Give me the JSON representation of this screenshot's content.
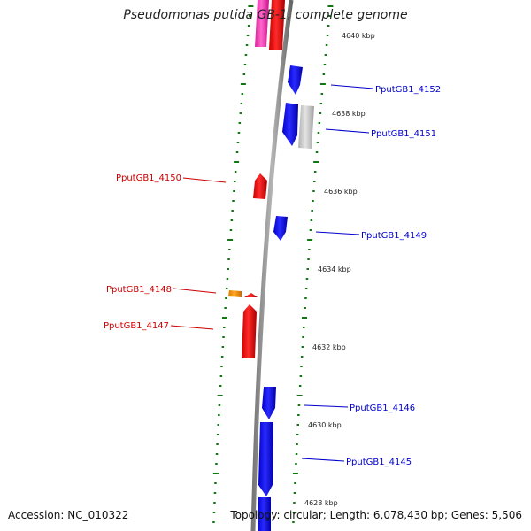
{
  "title": "Pseudomonas putida GB-1, complete genome",
  "accession": "Accession: NC_010322",
  "topology": "Topology: circular; Length: 6,078,430 bp; Genes: 5,506",
  "colors": {
    "backbone": "#8a8a8a",
    "forward_gene": "#0000ee",
    "reverse_gene": "#ee0000",
    "pseudo_gene": "#c8c8c8",
    "rna_gene": "#ee8800",
    "pink_gene": "#ff44bb",
    "ticks": "#117711",
    "forward_label": "#0000cc",
    "reverse_label": "#cc0000"
  },
  "scale_labels": [
    "4640 kbp",
    "4638 kbp",
    "4636 kbp",
    "4634 kbp",
    "4632 kbp",
    "4630 kbp",
    "4628 kbp"
  ],
  "gene_labels": {
    "forward": [
      "PputGB1_4152",
      "PputGB1_4151",
      "PputGB1_4149",
      "PputGB1_4146",
      "PputGB1_4145"
    ],
    "reverse": [
      "PputGB1_4150",
      "PputGB1_4148",
      "PputGB1_4147"
    ]
  }
}
